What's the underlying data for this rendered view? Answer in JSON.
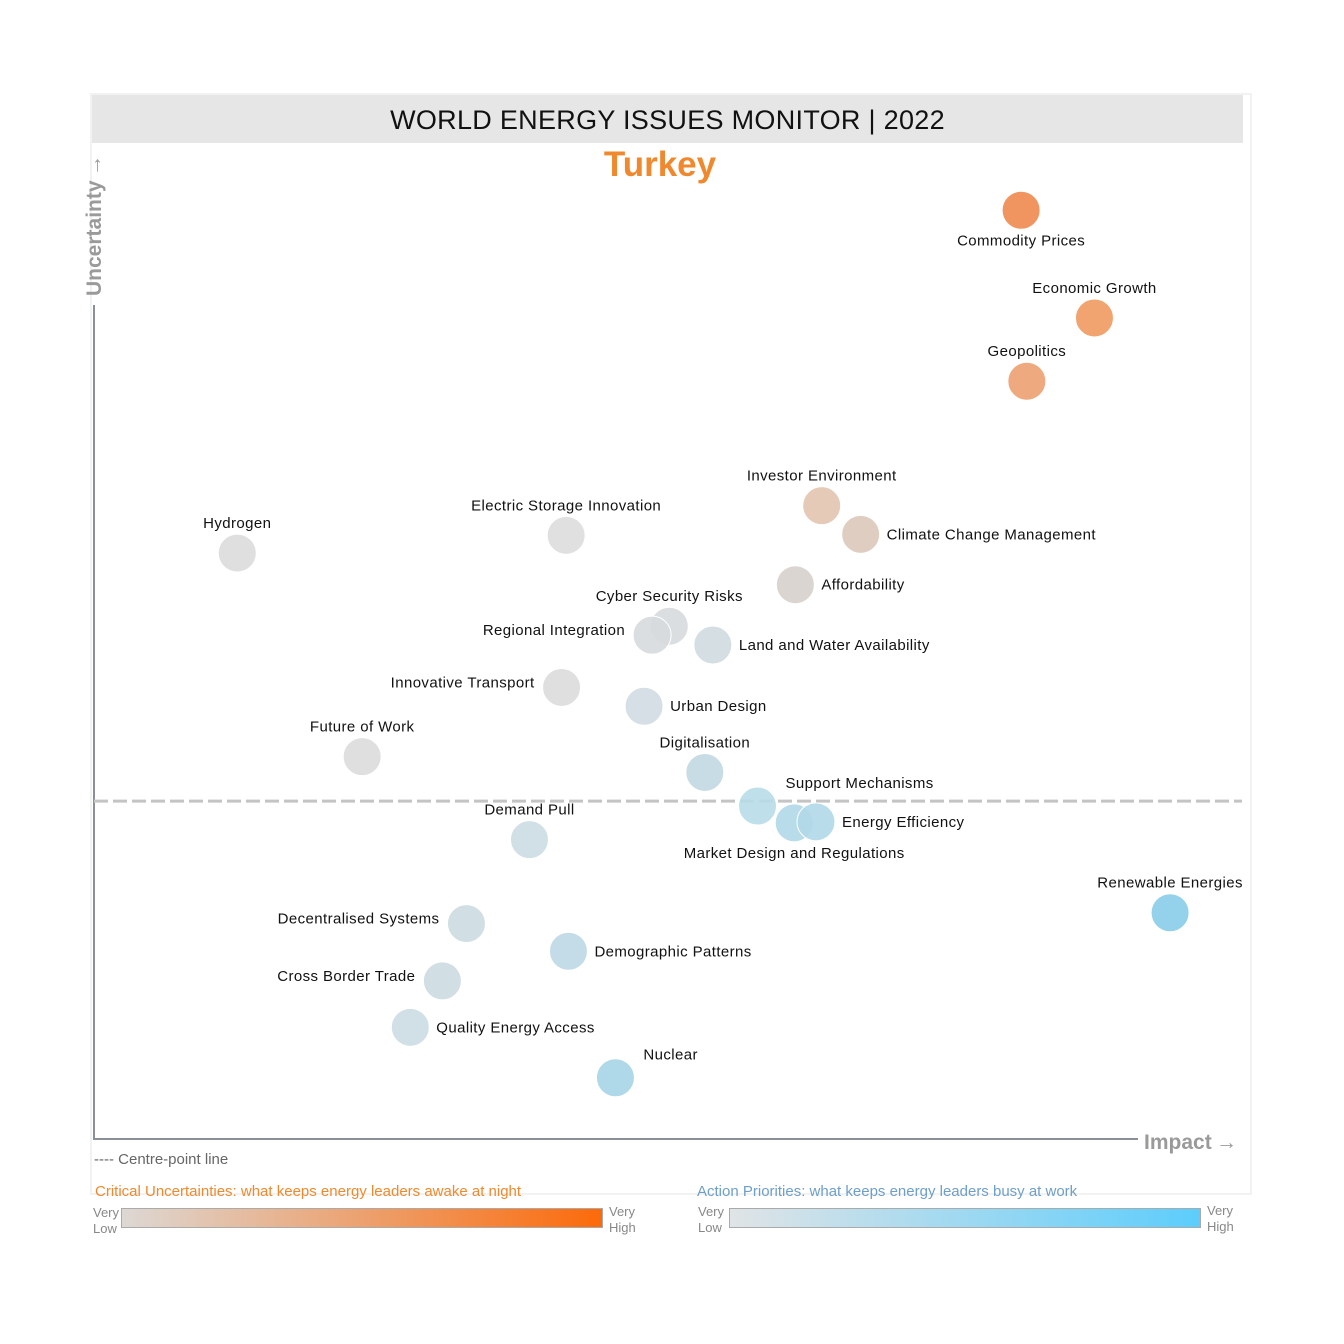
{
  "header": {
    "title": "WORLD ENERGY ISSUES MONITOR | 2022",
    "country": "Turkey"
  },
  "chart_data": {
    "type": "scatter",
    "title": "WORLD ENERGY ISSUES MONITOR | 2022",
    "subtitle": "Turkey",
    "xlabel": "Impact",
    "ylabel": "Uncertainty",
    "xlim": [
      0,
      100
    ],
    "ylim": [
      0,
      100
    ],
    "centre_line_y": 34.1,
    "grid": false,
    "points": [
      {
        "name": "Commodity Prices",
        "x": 80.9,
        "y": 93.9,
        "color": "#ef8a4f",
        "label_pos": "below"
      },
      {
        "name": "Economic Growth",
        "x": 87.3,
        "y": 83.0,
        "color": "#ef9a60",
        "label_pos": "above"
      },
      {
        "name": "Geopolitics",
        "x": 81.4,
        "y": 76.6,
        "color": "#eda070",
        "label_pos": "above"
      },
      {
        "name": "Investor Environment",
        "x": 63.5,
        "y": 64.0,
        "color": "#e2c4b0",
        "label_pos": "above"
      },
      {
        "name": "Climate Change Management",
        "x": 66.9,
        "y": 61.1,
        "color": "#dcc8ba",
        "label_pos": "right"
      },
      {
        "name": "Affordability",
        "x": 61.2,
        "y": 56.0,
        "color": "#d6d0cc",
        "label_pos": "right"
      },
      {
        "name": "Hydrogen",
        "x": 12.5,
        "y": 59.2,
        "color": "#dcdcdc",
        "label_pos": "above"
      },
      {
        "name": "Electric Storage Innovation",
        "x": 41.2,
        "y": 61.0,
        "color": "#dddddd",
        "label_pos": "above"
      },
      {
        "name": "Cyber Security Risks",
        "x": 50.2,
        "y": 51.8,
        "color": "#d6dadd",
        "label_pos": "above"
      },
      {
        "name": "Regional Integration",
        "x": 48.7,
        "y": 50.9,
        "color": "#d6dadd",
        "label_pos": "left"
      },
      {
        "name": "Land and Water Availability",
        "x": 54.0,
        "y": 49.9,
        "color": "#d0dae0",
        "label_pos": "right"
      },
      {
        "name": "Innovative Transport",
        "x": 40.8,
        "y": 45.6,
        "color": "#dcdcdc",
        "label_pos": "left"
      },
      {
        "name": "Urban Design",
        "x": 48.0,
        "y": 43.7,
        "color": "#d0dce2",
        "label_pos": "right"
      },
      {
        "name": "Future of Work",
        "x": 23.4,
        "y": 38.6,
        "color": "#dcdcdc",
        "label_pos": "above"
      },
      {
        "name": "Digitalisation",
        "x": 53.3,
        "y": 37.0,
        "color": "#c2d8e2",
        "label_pos": "above"
      },
      {
        "name": "Support Mechanisms",
        "x": 57.9,
        "y": 33.6,
        "color": "#b8dbe8",
        "label_pos": "above-right"
      },
      {
        "name": "Market Design and Regulations",
        "x": 61.1,
        "y": 31.9,
        "color": "#b0d8e8",
        "label_pos": "below"
      },
      {
        "name": "Energy Efficiency",
        "x": 63.0,
        "y": 32.0,
        "color": "#b0d8e8",
        "label_pos": "right"
      },
      {
        "name": "Demand Pull",
        "x": 38.0,
        "y": 30.2,
        "color": "#ccdde4",
        "label_pos": "above"
      },
      {
        "name": "Renewable Energies",
        "x": 93.9,
        "y": 22.8,
        "color": "#88cce8",
        "label_pos": "above"
      },
      {
        "name": "Decentralised Systems",
        "x": 32.5,
        "y": 21.7,
        "color": "#ccdae0",
        "label_pos": "left"
      },
      {
        "name": "Demographic Patterns",
        "x": 41.4,
        "y": 18.9,
        "color": "#bcd8e4",
        "label_pos": "right"
      },
      {
        "name": "Cross Border Trade",
        "x": 30.4,
        "y": 15.9,
        "color": "#ccdae0",
        "label_pos": "left"
      },
      {
        "name": "Quality Energy Access",
        "x": 27.6,
        "y": 11.2,
        "color": "#ccdde4",
        "label_pos": "right"
      },
      {
        "name": "Nuclear",
        "x": 45.5,
        "y": 6.1,
        "color": "#a6d4e6",
        "label_pos": "above-right"
      }
    ]
  },
  "legend": {
    "centre_line": "---- Centre-point line",
    "uncertainties": {
      "title": "Critical Uncertainties: what keeps energy leaders awake at night",
      "low": "Very Low",
      "high": "Very High",
      "color_low": "#ddd8d4",
      "color_high": "#fc6a0a",
      "title_color": "#f0892e"
    },
    "priorities": {
      "title": "Action Priorities: what keeps energy leaders busy at work",
      "low": "Very Low",
      "high": "Very High",
      "color_low": "#e0e4e6",
      "color_high": "#5ccdfc",
      "title_color": "#6e9fc9"
    }
  }
}
